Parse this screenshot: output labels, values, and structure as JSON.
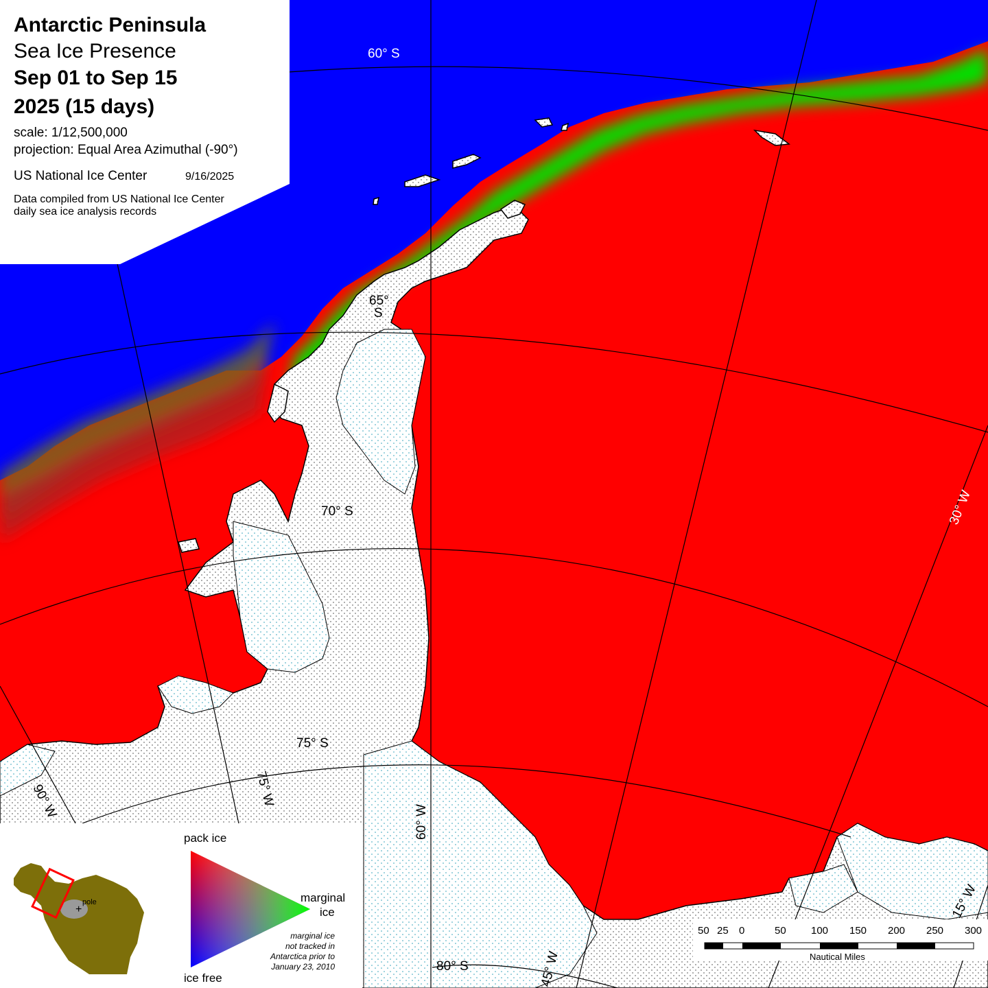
{
  "title_block": {
    "region": "Antarctic Peninsula",
    "product": "Sea Ice Presence",
    "date_range": "Sep 01 to Sep 15",
    "year_days": "2025   (15 days)",
    "scale": "scale: 1/12,500,000",
    "projection": "projection: Equal Area Azimuthal (-90°)",
    "agency": "US National Ice Center",
    "issued": "9/16/2025",
    "note_line1": "Data compiled from US National Ice Center",
    "note_line2": "daily sea ice analysis records"
  },
  "graticule_labels": {
    "lat_60": "60°  S",
    "lat_65a": "65°",
    "lat_65b": "S",
    "lat_70": "70°  S",
    "lat_75": "75°  S",
    "lat_80": "80°  S",
    "lon_90": "90°  W",
    "lon_75": "75°  W",
    "lon_60": "60°  W",
    "lon_45": "45°  W",
    "lon_30": "30°  W",
    "lon_15": "15°  W"
  },
  "legend": {
    "pack_ice": "pack ice",
    "marginal_ice_1": "marginal",
    "marginal_ice_2": "ice",
    "ice_free": "ice free",
    "note_1": "marginal ice",
    "note_2": "not tracked in",
    "note_3": "Antarctica prior to",
    "note_4": "January 23, 2010",
    "locator_pole": "pole",
    "colors": {
      "pack_ice": "#ff0000",
      "marginal_ice": "#00ff00",
      "ice_free": "#0000ff"
    }
  },
  "scale_bar": {
    "ticks": [
      "50",
      "25",
      "0",
      "50",
      "100",
      "150",
      "200",
      "250",
      "300"
    ],
    "unit": "Nautical Miles"
  }
}
